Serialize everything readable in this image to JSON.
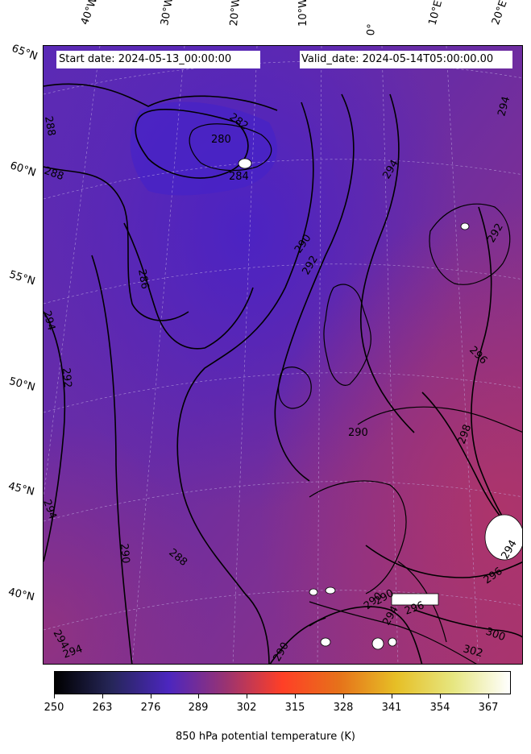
{
  "header": {
    "start_date": "Start date: 2024-05-13_00:00:00",
    "valid_date": "Valid_date: 2024-05-14T05:00:00.00"
  },
  "lon_labels": [
    "40°W",
    "30°W",
    "20°W",
    "10°W",
    "0°",
    "10°E",
    "20°E"
  ],
  "lat_labels": [
    "65°N",
    "60°N",
    "55°N",
    "50°N",
    "45°N",
    "40°N"
  ],
  "contour_labels": [
    "288",
    "280",
    "282",
    "284",
    "288",
    "286",
    "290",
    "292",
    "294",
    "294",
    "292",
    "292",
    "294",
    "296",
    "298",
    "294",
    "294",
    "290",
    "288",
    "290",
    "296",
    "296",
    "300",
    "302",
    "294",
    "290",
    "294",
    "294",
    "290",
    "290"
  ],
  "colorbar": {
    "label": "850 hPa potential temperature (K)",
    "ticks": [
      "250",
      "263",
      "276",
      "289",
      "302",
      "315",
      "328",
      "341",
      "354",
      "367"
    ],
    "range": [
      250,
      373
    ],
    "colormap": "CMRmap",
    "stops": [
      "#000000",
      "#262659",
      "#4c26bf",
      "#993372",
      "#ff3f26",
      "#e6721a",
      "#e6bf26",
      "#e6e680",
      "#ffffff"
    ]
  },
  "field": {
    "variable": "850 hPa potential temperature",
    "unit": "K",
    "colors": {
      "cold": "#4a24c0",
      "mid": "#6a2ba8",
      "warm": "#8f3384",
      "hot": "#a83370"
    }
  }
}
